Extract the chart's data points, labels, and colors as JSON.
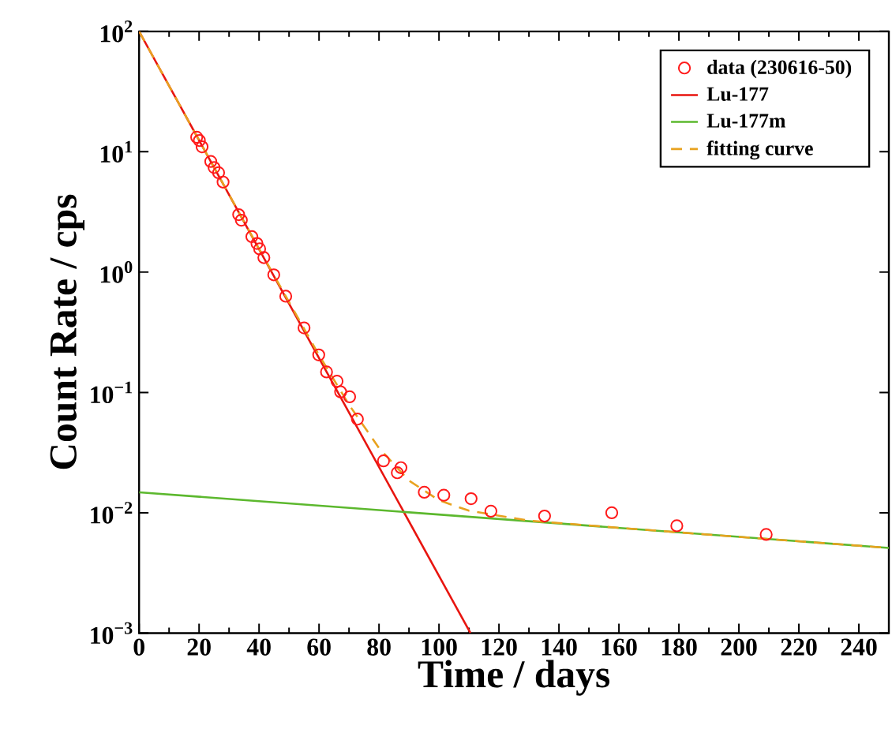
{
  "chart_data": {
    "type": "line",
    "xlabel": "Time / days",
    "ylabel": "Count Rate / cps",
    "xlim": [
      0,
      250
    ],
    "ylim": [
      0.001,
      100
    ],
    "log": "y",
    "xticks": [
      0,
      20,
      40,
      60,
      80,
      100,
      120,
      140,
      160,
      180,
      200,
      220,
      240
    ],
    "yticks": [
      {
        "value": 0.001,
        "label": "10$^{−3}$"
      },
      {
        "value": 0.01,
        "label": "10$^{−2}$"
      },
      {
        "value": 0.1,
        "label": "10$^{−1}$"
      },
      {
        "value": 1,
        "label": "10$^{0}$"
      },
      {
        "value": 10,
        "label": "10$^{1}$"
      },
      {
        "value": 100,
        "label": "10$^{2}$"
      }
    ],
    "legend": "top right",
    "grid": false,
    "series": [
      {
        "name": "data (230616-50)",
        "type": "scatter",
        "marker": "circle",
        "color": "#ff1a1a",
        "x": [
          19.2,
          20.1,
          21.0,
          23.9,
          25.0,
          26.5,
          28.0,
          33.2,
          34.1,
          37.6,
          39.3,
          40.2,
          41.6,
          44.9,
          48.9,
          55.0,
          59.9,
          62.5,
          66.0,
          67.2,
          70.2,
          72.8,
          81.5,
          86.1,
          87.3,
          95.1,
          101.6,
          110.7,
          117.3,
          135.2,
          157.6,
          179.3,
          209.1
        ],
        "values": [
          13.2,
          12.4,
          11.0,
          8.3,
          7.4,
          6.7,
          5.6,
          3.0,
          2.7,
          1.97,
          1.73,
          1.56,
          1.32,
          0.95,
          0.63,
          0.344,
          0.205,
          0.148,
          0.124,
          0.101,
          0.092,
          0.06,
          0.027,
          0.0215,
          0.0237,
          0.0148,
          0.014,
          0.0131,
          0.0103,
          0.0094,
          0.01,
          0.0078,
          0.0066
        ]
      },
      {
        "name": "Lu-177",
        "line_style": "solid",
        "color": "#e8150f",
        "x": [
          0,
          110.5
        ],
        "values": [
          100,
          0.001
        ]
      },
      {
        "name": "Lu-177m",
        "line_style": "solid",
        "color": "#5cb82e",
        "x": [
          0,
          250
        ],
        "values": [
          0.0148,
          0.0051
        ]
      },
      {
        "name": "fitting curve",
        "line_style": "dashed",
        "color": "#e8a21f",
        "x": [
          0,
          20,
          40,
          60,
          70,
          80,
          90,
          100,
          110,
          130,
          160,
          200,
          250
        ],
        "values": [
          100,
          12.46,
          1.56,
          0.204,
          0.079,
          0.0345,
          0.0185,
          0.0127,
          0.0104,
          0.0086,
          0.0075,
          0.0063,
          0.0051
        ]
      }
    ]
  }
}
